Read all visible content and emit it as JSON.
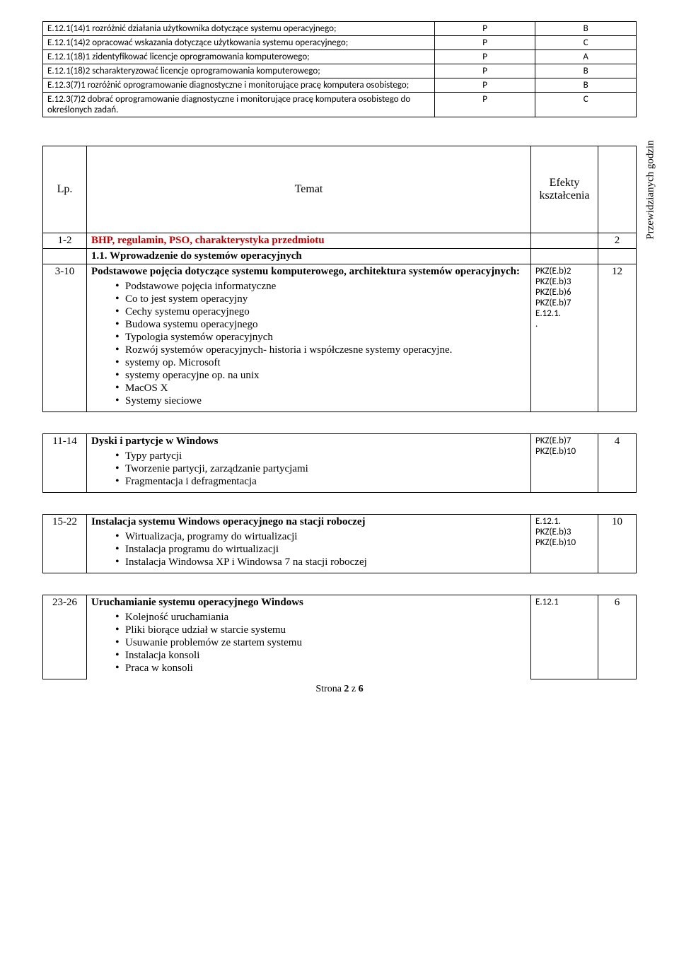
{
  "topTable": {
    "rows": [
      {
        "desc": "E.12.1(14)1 rozróżnić działania użytkownika dotyczące systemu operacyjnego;",
        "c1": "P",
        "c2": "B"
      },
      {
        "desc": "E.12.1(14)2 opracować wskazania dotyczące użytkowania systemu operacyjnego;",
        "c1": "P",
        "c2": "C"
      },
      {
        "desc": "E.12.1(18)1 zidentyfikować licencje oprogramowania komputerowego;",
        "c1": "P",
        "c2": "A"
      },
      {
        "desc": "E.12.1(18)2 scharakteryzować licencje oprogramowania komputerowego;",
        "c1": "P",
        "c2": "B"
      },
      {
        "desc": "E.12.3(7)1 rozróżnić oprogramowanie diagnostyczne i monitorujące pracę komputera osobistego;",
        "c1": "P",
        "c2": "B"
      },
      {
        "desc": "E.12.3(7)2 dobrać oprogramowanie diagnostyczne i monitorujące pracę komputera osobistego do określonych zadań.",
        "c1": "P",
        "c2": "C"
      }
    ]
  },
  "headers": {
    "lp": "Lp.",
    "topic": "Temat",
    "eff": "Efekty kształcenia",
    "hrs": "Przewidzianych godzin"
  },
  "row_bhp": {
    "lp": "1-2",
    "title": "BHP, regulamin, PSO, charakterystyka przedmiotu",
    "hrs": "2"
  },
  "row_intro": {
    "lp": "",
    "title": "1.1. Wprowadzenie do systemów operacyjnych"
  },
  "row_310": {
    "lp": "3-10",
    "title": "Podstawowe pojęcia dotyczące systemu komputerowego, architektura systemów operacyjnych:",
    "bullets": [
      "Podstawowe pojęcia informatyczne",
      "Co to jest system operacyjny",
      "Cechy systemu operacyjnego",
      "Budowa systemu operacyjnego",
      "Typologia systemów operacyjnych",
      "Rozwój systemów operacyjnych- historia i współczesne systemy operacyjne.",
      "systemy op. Microsoft",
      "systemy operacyjne  op. na unix",
      "MacOS X",
      "Systemy  sieciowe"
    ],
    "eff_lines": [
      "PKZ(E.b)2",
      "PKZ(E.b)3",
      "PKZ(E.b)6",
      "PKZ(E.b)7",
      "E.12.1.",
      "."
    ],
    "hrs": "12"
  },
  "row_1114": {
    "lp": "11-14",
    "title": "Dyski i partycje w Windows",
    "bullets": [
      "Typy partycji",
      "Tworzenie partycji, zarządzanie partycjami",
      "Fragmentacja i defragmentacja"
    ],
    "eff_lines": [
      "PKZ(E.b)7",
      "PKZ(E.b)10"
    ],
    "hrs": "4"
  },
  "row_1522": {
    "lp": "15-22",
    "title": "Instalacja systemu Windows operacyjnego na stacji roboczej",
    "bullets": [
      "Wirtualizacja, programy do wirtualizacji",
      "Instalacja programu do wirtualizacji",
      "Instalacja Windowsa XP i Windowsa 7 na stacji roboczej"
    ],
    "eff_lines": [
      "E.12.1.",
      "PKZ(E.b)3",
      "PKZ(E.b)10"
    ],
    "hrs": "10"
  },
  "row_2326": {
    "lp": "23-26",
    "title": "Uruchamianie systemu operacyjnego Windows",
    "bullets": [
      "Kolejność uruchamiania",
      "Pliki biorące udział w starcie systemu",
      "Usuwanie problemów ze startem systemu",
      "Instalacja konsoli",
      "Praca w konsoli"
    ],
    "eff_lines": [
      "E.12.1"
    ],
    "hrs": "6"
  },
  "footer": "Strona 2 z 6"
}
